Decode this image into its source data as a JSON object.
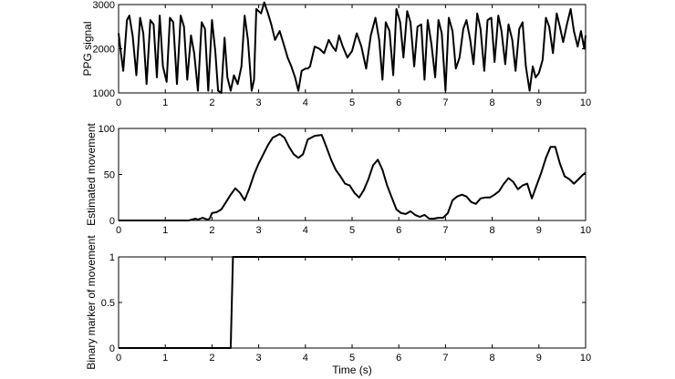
{
  "chart_data": [
    {
      "type": "line",
      "ylabel": "PPG signal",
      "xlabel": "",
      "xlim": [
        0,
        10
      ],
      "ylim": [
        1000,
        3000
      ],
      "xticks": [
        0,
        1,
        2,
        3,
        4,
        5,
        6,
        7,
        8,
        9,
        10
      ],
      "yticks": [
        1000,
        2000,
        3000
      ],
      "grid": false,
      "series": [
        {
          "x": [
            0,
            0.05,
            0.1,
            0.18,
            0.23,
            0.3,
            0.38,
            0.46,
            0.53,
            0.6,
            0.68,
            0.75,
            0.82,
            0.88,
            0.95,
            1.03,
            1.1,
            1.17,
            1.25,
            1.33,
            1.4,
            1.47,
            1.55,
            1.62,
            1.7,
            1.78,
            1.85,
            1.92,
            2.0,
            2.07,
            2.13,
            2.2,
            2.27,
            2.33,
            2.4,
            2.47,
            2.55,
            2.63,
            2.7,
            2.77,
            2.85,
            2.9,
            2.95,
            3.0,
            3.05,
            3.12,
            3.2,
            3.27,
            3.35,
            3.45,
            3.55,
            3.62,
            3.7,
            3.78,
            3.85,
            3.92,
            4.0,
            4.05,
            4.1,
            4.2,
            4.3,
            4.4,
            4.5,
            4.58,
            4.65,
            4.72,
            4.8,
            4.9,
            5.0,
            5.1,
            5.2,
            5.3,
            5.4,
            5.5,
            5.58,
            5.65,
            5.72,
            5.8,
            5.88,
            5.95,
            6.03,
            6.1,
            6.18,
            6.25,
            6.33,
            6.4,
            6.48,
            6.55,
            6.62,
            6.7,
            6.78,
            6.85,
            6.92,
            7.0,
            7.07,
            7.15,
            7.22,
            7.3,
            7.38,
            7.45,
            7.53,
            7.6,
            7.68,
            7.75,
            7.83,
            7.9,
            7.98,
            8.05,
            8.13,
            8.2,
            8.28,
            8.35,
            8.43,
            8.5,
            8.58,
            8.65,
            8.72,
            8.8,
            8.87,
            8.93,
            9.0,
            9.08,
            9.15,
            9.22,
            9.3,
            9.38,
            9.45,
            9.52,
            9.6,
            9.68,
            9.75,
            9.83,
            9.9,
            9.97,
            10.0
          ],
          "y": [
            2350,
            1900,
            1500,
            2650,
            2750,
            2300,
            1400,
            2700,
            2350,
            1200,
            2650,
            2550,
            1350,
            2750,
            1600,
            1250,
            2700,
            2600,
            1200,
            2750,
            2500,
            1300,
            2300,
            1900,
            1050,
            2600,
            2450,
            1050,
            2650,
            1950,
            1050,
            1000,
            2250,
            1350,
            1050,
            1400,
            1200,
            1600,
            2750,
            2200,
            1050,
            1300,
            2900,
            2850,
            2800,
            3050,
            2800,
            2550,
            2200,
            2400,
            2050,
            1800,
            1600,
            1350,
            1050,
            1500,
            1550,
            1550,
            1600,
            2050,
            2000,
            1900,
            2200,
            2050,
            1950,
            2300,
            2050,
            1800,
            1950,
            2350,
            2050,
            1550,
            2300,
            2700,
            2200,
            1300,
            2600,
            2400,
            1400,
            2900,
            2600,
            1800,
            2850,
            2600,
            1600,
            2500,
            2550,
            1300,
            2650,
            2100,
            1350,
            2650,
            2350,
            1050,
            2700,
            2400,
            1550,
            1800,
            2450,
            2650,
            2200,
            1650,
            2800,
            2450,
            1500,
            2650,
            2700,
            1700,
            2750,
            2400,
            1650,
            2550,
            2200,
            1500,
            2450,
            2600,
            1600,
            1050,
            1600,
            1350,
            1450,
            1750,
            2700,
            2500,
            1900,
            2800,
            2500,
            2150,
            2550,
            2900,
            2400,
            2050,
            2400,
            2000,
            2300
          ]
        }
      ]
    },
    {
      "type": "line",
      "ylabel": "Estimated movement",
      "xlabel": "",
      "xlim": [
        0,
        10
      ],
      "ylim": [
        0,
        100
      ],
      "xticks": [
        0,
        1,
        2,
        3,
        4,
        5,
        6,
        7,
        8,
        9,
        10
      ],
      "yticks": [
        0,
        50,
        100
      ],
      "grid": false,
      "series": [
        {
          "x": [
            0,
            0.5,
            1.0,
            1.5,
            1.65,
            1.7,
            1.8,
            1.9,
            1.95,
            2.0,
            2.1,
            2.2,
            2.3,
            2.4,
            2.5,
            2.6,
            2.7,
            2.8,
            2.9,
            3.0,
            3.1,
            3.2,
            3.3,
            3.45,
            3.55,
            3.65,
            3.75,
            3.85,
            3.95,
            4.05,
            4.2,
            4.35,
            4.45,
            4.55,
            4.65,
            4.75,
            4.85,
            4.95,
            5.05,
            5.15,
            5.25,
            5.35,
            5.45,
            5.55,
            5.65,
            5.75,
            5.85,
            5.95,
            6.05,
            6.15,
            6.25,
            6.35,
            6.45,
            6.55,
            6.65,
            6.75,
            6.85,
            6.95,
            7.05,
            7.15,
            7.25,
            7.35,
            7.45,
            7.55,
            7.65,
            7.75,
            7.85,
            7.95,
            8.05,
            8.15,
            8.25,
            8.35,
            8.45,
            8.55,
            8.65,
            8.75,
            8.85,
            8.95,
            9.05,
            9.15,
            9.25,
            9.35,
            9.45,
            9.55,
            9.65,
            9.75,
            9.85,
            9.95,
            10.0
          ],
          "y": [
            0,
            0,
            0,
            0,
            2,
            1,
            3,
            1,
            2,
            8,
            9,
            12,
            20,
            28,
            35,
            30,
            22,
            35,
            50,
            62,
            72,
            82,
            90,
            94,
            90,
            80,
            72,
            68,
            72,
            88,
            92,
            93,
            80,
            66,
            55,
            48,
            40,
            38,
            30,
            25,
            33,
            45,
            60,
            66,
            55,
            38,
            25,
            12,
            8,
            7,
            10,
            6,
            4,
            6,
            2,
            2,
            3,
            3,
            8,
            22,
            26,
            28,
            26,
            20,
            18,
            24,
            25,
            25,
            28,
            32,
            40,
            46,
            42,
            34,
            38,
            40,
            24,
            38,
            52,
            68,
            80,
            80,
            62,
            48,
            45,
            40,
            45,
            50,
            52
          ]
        }
      ]
    },
    {
      "type": "line",
      "ylabel": "Binary marker of movement",
      "xlabel": "Time (s)",
      "xlim": [
        0,
        10
      ],
      "ylim": [
        0,
        1
      ],
      "xticks": [
        0,
        1,
        2,
        3,
        4,
        5,
        6,
        7,
        8,
        9,
        10
      ],
      "yticks": [
        0,
        0.5,
        1
      ],
      "grid": false,
      "series": [
        {
          "x": [
            0,
            2.4,
            2.45,
            10
          ],
          "y": [
            0,
            0,
            1,
            1
          ]
        }
      ]
    }
  ]
}
